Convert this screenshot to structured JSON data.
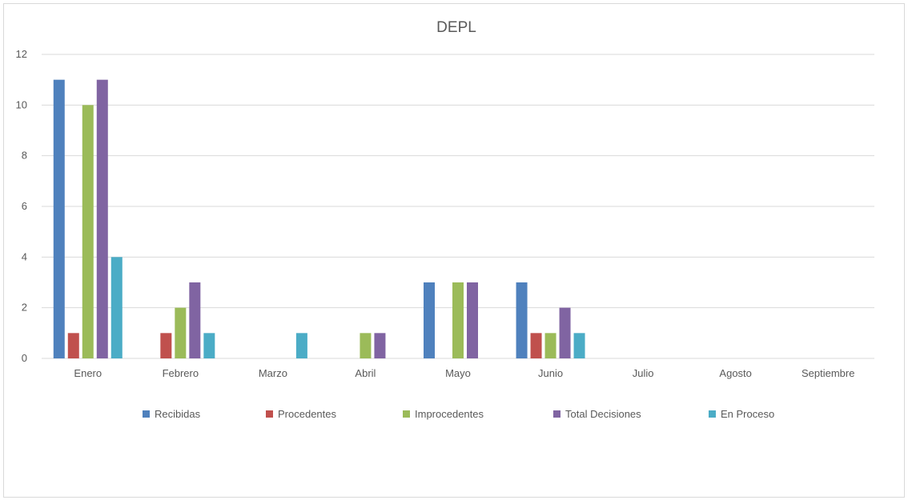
{
  "chart_data": {
    "type": "bar",
    "title": "DEPL",
    "categories": [
      "Enero",
      "Febrero",
      "Marzo",
      "Abril",
      "Mayo",
      "Junio",
      "Julio",
      "Agosto",
      "Septiembre"
    ],
    "series": [
      {
        "name": "Recibidas",
        "color": "#4f81bd",
        "values": [
          11,
          0,
          0,
          0,
          3,
          3,
          0,
          0,
          0
        ]
      },
      {
        "name": "Procedentes",
        "color": "#c0504d",
        "values": [
          1,
          1,
          0,
          0,
          0,
          1,
          0,
          0,
          0
        ]
      },
      {
        "name": "Improcedentes",
        "color": "#9bbb59",
        "values": [
          10,
          2,
          0,
          1,
          3,
          1,
          0,
          0,
          0
        ]
      },
      {
        "name": "Total Decisiones",
        "color": "#8064a2",
        "values": [
          11,
          3,
          0,
          1,
          3,
          2,
          0,
          0,
          0
        ]
      },
      {
        "name": "En Proceso",
        "color": "#4bacc6",
        "values": [
          4,
          1,
          1,
          0,
          0,
          1,
          0,
          0,
          0
        ]
      }
    ],
    "ylim": [
      0,
      12
    ],
    "yticks": [
      0,
      2,
      4,
      6,
      8,
      10,
      12
    ],
    "grid": true,
    "legend_position": "bottom"
  }
}
